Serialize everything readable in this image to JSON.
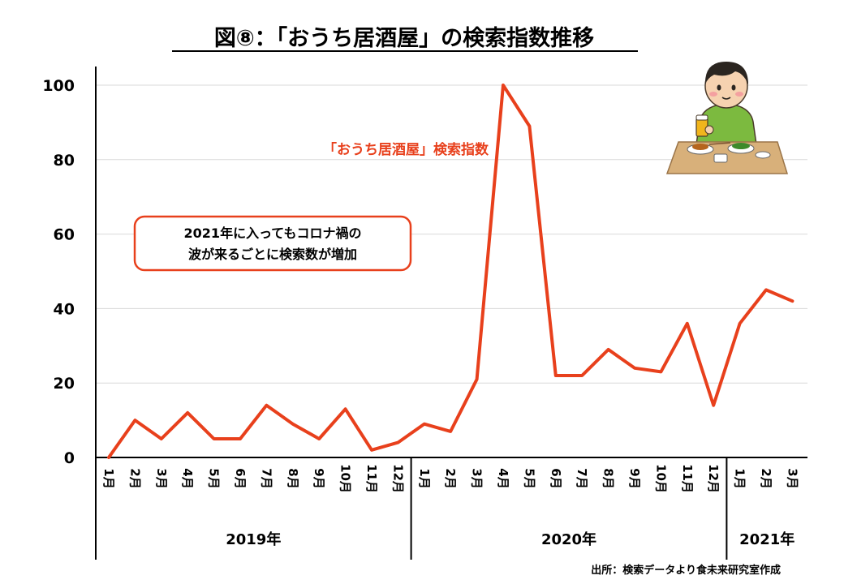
{
  "chart_data": {
    "type": "line",
    "title": "図⑧：「おうち居酒屋」の検索指数推移",
    "categories": [
      "1月",
      "2月",
      "3月",
      "4月",
      "5月",
      "6月",
      "7月",
      "8月",
      "9月",
      "10月",
      "11月",
      "12月",
      "1月",
      "2月",
      "3月",
      "4月",
      "5月",
      "6月",
      "7月",
      "8月",
      "9月",
      "10月",
      "11月",
      "12月",
      "1月",
      "2月",
      "3月"
    ],
    "year_groups": [
      {
        "label": "2019年",
        "count": 12
      },
      {
        "label": "2020年",
        "count": 12
      },
      {
        "label": "2021年",
        "count": 3
      }
    ],
    "series": [
      {
        "name": "「おうち居酒屋」検索指数",
        "color": "#e8401c",
        "values": [
          0,
          10,
          5,
          12,
          5,
          5,
          14,
          9,
          5,
          13,
          2,
          4,
          9,
          7,
          21,
          100,
          89,
          22,
          22,
          29,
          24,
          23,
          36,
          14,
          36,
          45,
          42
        ]
      }
    ],
    "ylim": [
      0,
      100
    ],
    "yticks": [
      0,
      20,
      40,
      60,
      80,
      100
    ],
    "grid": true,
    "annotation": [
      "2021年に入ってもコロナ禍の",
      "波が来るごとに検索数が増加"
    ],
    "source": "出所：検索データより食未来研究室作成"
  },
  "colors": {
    "line": "#e8401c",
    "grid": "#d9d9d9",
    "axis": "#000000",
    "callout_border": "#e8401c"
  },
  "illustration": {
    "name": "person-drinking-at-table-illustration"
  }
}
